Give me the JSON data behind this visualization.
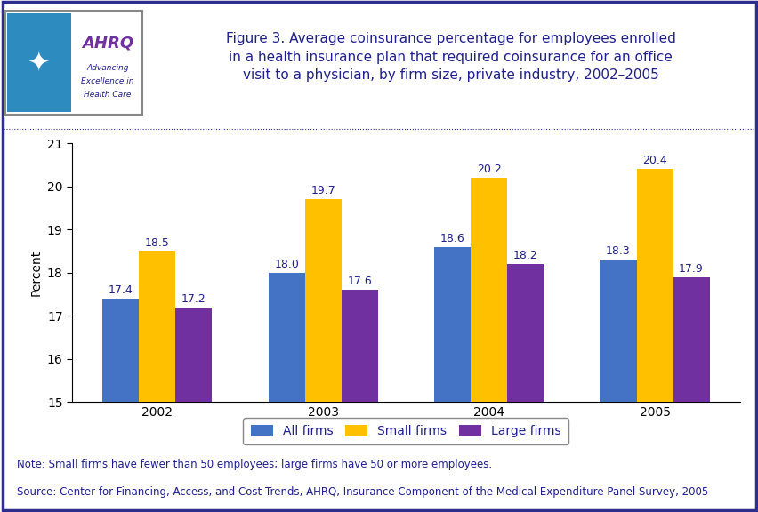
{
  "years": [
    "2002",
    "2003",
    "2004",
    "2005"
  ],
  "all_firms": [
    17.4,
    18.0,
    18.6,
    18.3
  ],
  "small_firms": [
    18.5,
    19.7,
    20.2,
    20.4
  ],
  "large_firms": [
    17.2,
    17.6,
    18.2,
    17.9
  ],
  "bar_colors": {
    "all_firms": "#4472c4",
    "small_firms": "#ffc000",
    "large_firms": "#7030a0"
  },
  "ylabel": "Percent",
  "ylim": [
    15,
    21
  ],
  "yticks": [
    15,
    16,
    17,
    18,
    19,
    20,
    21
  ],
  "title_line1": "Figure 3. Average coinsurance percentage for employees enrolled",
  "title_line2": "in a health insurance plan that required coinsurance for an office",
  "title_line3": "visit to a physician, by firm size, private industry, 2002–2005",
  "legend_labels": [
    "All firms",
    "Small firms",
    "Large firms"
  ],
  "note_line1": "Note: Small firms have fewer than 50 employees; large firms have 50 or more employees.",
  "note_line2": "Source: Center for Financing, Access, and Cost Trends, AHRQ, Insurance Component of the Medical Expenditure Panel Survey, 2005",
  "fig_bg_color": "#ffffff",
  "outer_border_color": "#2e2e8f",
  "header_separator_color": "#2e2e8f",
  "logo_bg_color": "#2e8bc0",
  "logo_box_bg": "#ffffff",
  "title_color": "#1f1f8f",
  "note_color": "#1f1f8f",
  "axis_color": "#000000",
  "tick_color": "#000000",
  "bar_width": 0.22,
  "label_fontsize": 9,
  "axis_fontsize": 10,
  "note_fontsize": 8.5,
  "title_fontsize": 11
}
